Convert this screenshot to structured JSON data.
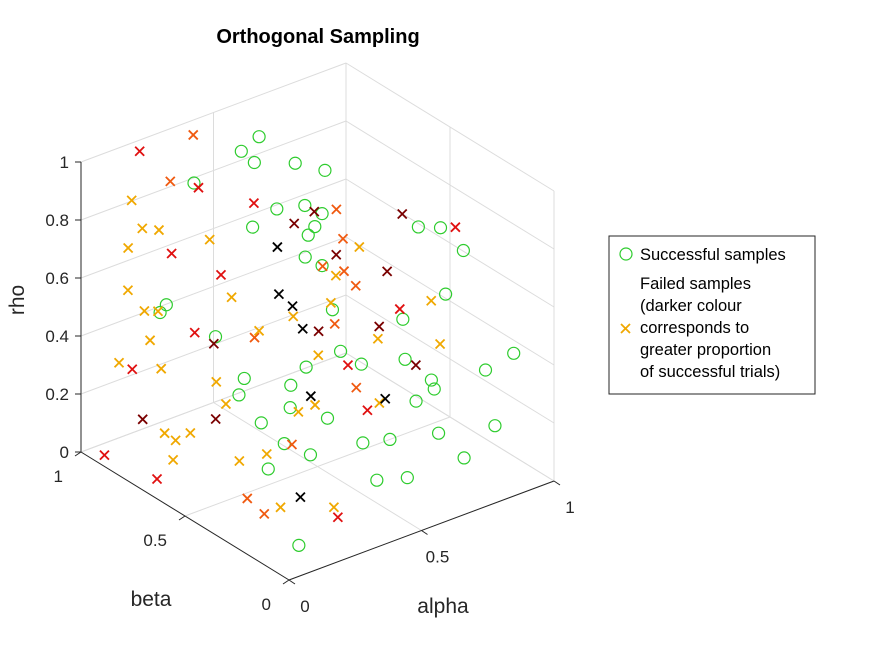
{
  "chart_data": {
    "type": "scatter",
    "title": "Orthogonal Sampling",
    "xlabel": "alpha",
    "ylabel": "beta",
    "zlabel": "rho",
    "xlim": [
      0,
      1
    ],
    "ylim": [
      0,
      1
    ],
    "zlim": [
      0,
      1
    ],
    "x_ticks": [
      "0",
      "0.5",
      "1"
    ],
    "y_ticks": [
      "0",
      "0.5",
      "1"
    ],
    "z_ticks": [
      "0",
      "0.2",
      "0.4",
      "0.6",
      "0.8",
      "1"
    ],
    "grid": true,
    "view": "3d",
    "legend_position": "right",
    "legend": [
      {
        "label": "Successful samples",
        "marker": "circle",
        "color": "#2ecc2e"
      },
      {
        "label_lines": [
          "Failed samples",
          "(darker colour",
          "corresponds to",
          "greater proportion",
          "of successful trials)"
        ],
        "marker": "cross",
        "color": "#f0a800"
      }
    ],
    "colors": {
      "successful": "#2ecc2e",
      "failed_light": "#f0a800",
      "failed_mid": "#f05a10",
      "failed_red": "#e01010",
      "failed_dark": "#7a0000",
      "failed_black": "#000000"
    },
    "series": [
      {
        "name": "Successful samples",
        "marker": "circle",
        "points": [
          [
            0.57,
            0.87,
            0.95
          ],
          [
            0.55,
            0.93,
            0.88
          ],
          [
            0.56,
            0.88,
            0.86
          ],
          [
            0.34,
            0.89,
            0.86
          ],
          [
            0.38,
            0.36,
            0.93
          ],
          [
            0.62,
            0.76,
            0.89
          ],
          [
            0.48,
            0.67,
            0.82
          ],
          [
            0.74,
            0.77,
            0.82
          ],
          [
            0.52,
            0.57,
            0.76
          ],
          [
            0.57,
            0.65,
            0.81
          ],
          [
            0.81,
            0.41,
            0.76
          ],
          [
            0.87,
            0.38,
            0.75
          ],
          [
            0.22,
            0.9,
            0.45
          ],
          [
            0.87,
            0.27,
            0.72
          ],
          [
            0.42,
            0.71,
            0.76
          ],
          [
            0.69,
            0.72,
            0.71
          ],
          [
            0.54,
            0.61,
            0.66
          ],
          [
            0.58,
            0.58,
            0.63
          ],
          [
            0.85,
            0.33,
            0.55
          ],
          [
            0.28,
            0.71,
            0.43
          ],
          [
            0.54,
            0.44,
            0.41
          ],
          [
            0.36,
            0.45,
            0.35
          ],
          [
            0.72,
            0.37,
            0.49
          ],
          [
            0.22,
            0.87,
            0.49
          ],
          [
            0.58,
            0.53,
            0.5
          ],
          [
            0.31,
            0.61,
            0.32
          ],
          [
            0.41,
            0.44,
            0.4
          ],
          [
            0.65,
            0.27,
            0.42
          ],
          [
            0.34,
            0.33,
            0.17
          ],
          [
            0.66,
            0.23,
            0.29
          ],
          [
            0.54,
            0.34,
            0.41
          ],
          [
            0.42,
            0.18,
            0.25
          ],
          [
            0.71,
            0.22,
            0.35
          ],
          [
            0.22,
            0.38,
            0.14
          ],
          [
            0.82,
            0.1,
            0.4
          ],
          [
            0.28,
            0.49,
            0.23
          ],
          [
            0.76,
            0.27,
            0.28
          ],
          [
            0.42,
            0.35,
            0.26
          ],
          [
            0.41,
            0.1,
            0.16
          ],
          [
            0.53,
            0.19,
            0.22
          ],
          [
            0.95,
            0.13,
            0.4
          ],
          [
            0.69,
            0.16,
            0.2
          ],
          [
            0.24,
            0.3,
            0.38
          ],
          [
            0.1,
            0.08,
            0.05
          ],
          [
            0.1,
            0.15,
            0.37
          ],
          [
            0.58,
            0.17,
            0.08
          ],
          [
            0.84,
            0.08,
            0.21
          ],
          [
            0.29,
            0.61,
            0.27
          ],
          [
            0.7,
            0.05,
            0.16
          ]
        ]
      },
      {
        "name": "Failed samples",
        "marker": "cross",
        "points": [
          [
            0.19,
            0.96,
            0.99,
            "red"
          ],
          [
            0.18,
            0.8,
            0.96,
            "mid"
          ],
          [
            0.2,
            0.69,
            0.98,
            "red"
          ],
          [
            0.05,
            0.82,
            0.93,
            "light"
          ],
          [
            0.26,
            0.5,
            0.99,
            "red"
          ],
          [
            0.48,
            0.49,
            0.89,
            "dark"
          ],
          [
            0.43,
            0.32,
            0.99,
            "mid"
          ],
          [
            0.6,
            0.22,
            0.96,
            "dark"
          ],
          [
            0.73,
            0.13,
            0.91,
            "red"
          ],
          [
            0.31,
            0.37,
            0.96,
            "dark"
          ],
          [
            0.13,
            0.94,
            0.54,
            "light"
          ],
          [
            0.38,
            0.54,
            0.78,
            "black"
          ],
          [
            0.5,
            0.41,
            0.77,
            "dark"
          ],
          [
            0.4,
            0.25,
            0.93,
            "mid"
          ],
          [
            0.37,
            0.27,
            0.71,
            "light"
          ],
          [
            0.23,
            0.62,
            0.7,
            "red"
          ],
          [
            0.09,
            0.82,
            0.82,
            "light"
          ],
          [
            0.7,
            0.42,
            0.64,
            "dark"
          ],
          [
            0.65,
            0.49,
            0.71,
            "light"
          ],
          [
            0.2,
            0.88,
            0.75,
            "light"
          ],
          [
            0.24,
            0.87,
            0.66,
            "red"
          ],
          [
            0.37,
            0.52,
            0.63,
            "black"
          ],
          [
            0.17,
            0.99,
            0.65,
            "light"
          ],
          [
            0.41,
            0.38,
            0.55,
            "dark"
          ],
          [
            0.53,
            0.45,
            0.67,
            "light"
          ],
          [
            0.22,
            0.91,
            0.45,
            "light"
          ],
          [
            0.63,
            0.27,
            0.6,
            "red"
          ],
          [
            0.67,
            0.42,
            0.46,
            "dark"
          ],
          [
            0.59,
            0.59,
            0.62,
            "mid"
          ],
          [
            0.46,
            0.52,
            0.48,
            "black"
          ],
          [
            0.28,
            0.81,
            0.4,
            "red"
          ],
          [
            0.2,
            0.95,
            0.44,
            "light"
          ],
          [
            0.38,
            0.76,
            0.51,
            "light"
          ],
          [
            0.62,
            0.18,
            0.45,
            "dark"
          ],
          [
            0.68,
            0.14,
            0.52,
            "light"
          ],
          [
            0.5,
            0.62,
            0.5,
            "black"
          ],
          [
            0.72,
            0.49,
            0.37,
            "light"
          ],
          [
            0.5,
            0.26,
            0.3,
            "red"
          ],
          [
            0.6,
            0.33,
            0.26,
            "light"
          ],
          [
            0.49,
            0.79,
            0.32,
            "mid"
          ],
          [
            0.36,
            0.82,
            0.33,
            "dark"
          ],
          [
            0.56,
            0.43,
            0.36,
            "red"
          ],
          [
            0.55,
            0.56,
            0.34,
            "light"
          ],
          [
            0.13,
            0.78,
            0.34,
            "light"
          ],
          [
            0.22,
            0.63,
            0.33,
            "light"
          ],
          [
            0.08,
            0.7,
            0.17,
            "light"
          ],
          [
            0.63,
            0.34,
            0.26,
            "black"
          ],
          [
            0.19,
            0.91,
            0.36,
            "light"
          ],
          [
            0.46,
            0.73,
            0.38,
            "light"
          ],
          [
            0.42,
            0.49,
            0.22,
            "light"
          ],
          [
            0.56,
            0.39,
            0.3,
            "mid"
          ],
          [
            0.21,
            0.62,
            0.21,
            "dark"
          ],
          [
            0.28,
            0.66,
            0.22,
            "light"
          ],
          [
            0.13,
            0.64,
            0.18,
            "light"
          ],
          [
            0.17,
            0.92,
            0.09,
            "dark"
          ],
          [
            0.01,
            0.9,
            0.03,
            "red"
          ],
          [
            0.2,
            0.8,
            0.06,
            "light"
          ],
          [
            0.53,
            0.55,
            0.18,
            "light"
          ],
          [
            0.38,
            0.47,
            0.13,
            "mid"
          ],
          [
            0.31,
            0.34,
            0.03,
            "black"
          ],
          [
            0.34,
            0.54,
            0.08,
            "light"
          ],
          [
            0.12,
            0.71,
            0.06,
            "light"
          ],
          [
            0.26,
            0.57,
            0.07,
            "light"
          ],
          [
            0.31,
            0.29,
            0.4,
            "black"
          ],
          [
            0.78,
            0.31,
            0.56,
            "light"
          ],
          [
            0.71,
            0.64,
            0.54,
            "mid"
          ],
          [
            0.66,
            0.52,
            0.56,
            "mid"
          ],
          [
            0.35,
            0.23,
            0.03,
            "light"
          ],
          [
            0.15,
            0.31,
            0.04,
            "mid"
          ],
          [
            0.06,
            0.83,
            0.34,
            "red"
          ],
          [
            0.18,
            0.43,
            0.03,
            "mid"
          ],
          [
            0.31,
            0.16,
            0.04,
            "red"
          ],
          [
            0.62,
            0.57,
            0.42,
            "mid"
          ],
          [
            0.12,
            0.97,
            0.28,
            "light"
          ],
          [
            0.02,
            0.66,
            0.05,
            "red"
          ],
          [
            0.4,
            0.97,
            0.97,
            "mid"
          ],
          [
            0.33,
            0.4,
            0.62,
            "light"
          ],
          [
            0.18,
            0.27,
            0.07,
            "light"
          ],
          [
            0.36,
            0.84,
            0.68,
            "light"
          ]
        ]
      }
    ]
  }
}
